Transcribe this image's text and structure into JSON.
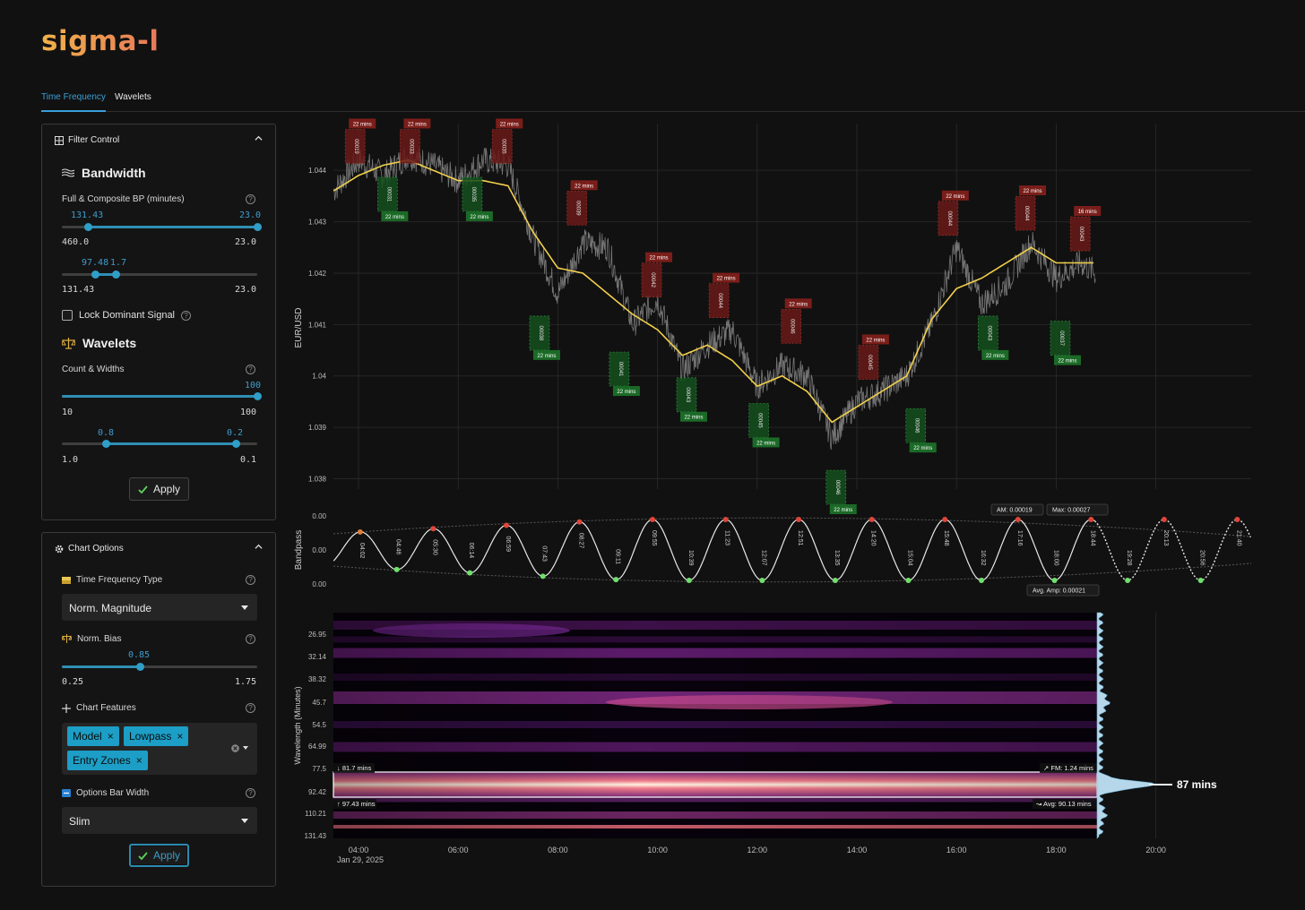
{
  "app": {
    "logo": "sigma-l"
  },
  "tabs": [
    {
      "label": "Time Frequency",
      "active": true
    },
    {
      "label": "Wavelets",
      "active": false
    }
  ],
  "filter_control": {
    "title": "Filter Control",
    "bandwidth": {
      "title": "Bandwidth",
      "label": "Full & Composite BP (minutes)",
      "slider1": {
        "low": "131.43",
        "high": "23.0",
        "min": "460.0",
        "max": "23.0",
        "low_pos": 0.135,
        "high_pos": 1.0
      },
      "slider2": {
        "low": "97.48",
        "high": "1.7",
        "min": "131.43",
        "max": "23.0",
        "low_pos": 0.17,
        "high_pos": 0.275
      }
    },
    "lock_label": "Lock Dominant Signal",
    "lock_checked": false,
    "wavelets": {
      "title": "Wavelets",
      "label": "Count & Widths",
      "count": {
        "value": "100",
        "min": "10",
        "max": "100",
        "pos": 1.0
      },
      "width": {
        "low": "0.8",
        "high": "0.2",
        "min": "1.0",
        "max": "0.1",
        "low_pos": 0.225,
        "high_pos": 0.89
      }
    },
    "apply_label": "Apply"
  },
  "chart_options": {
    "title": "Chart Options",
    "tf_type_label": "Time Frequency Type",
    "tf_type_value": "Norm. Magnitude",
    "norm_bias_label": "Norm. Bias",
    "norm_bias": {
      "value": "0.85",
      "min": "0.25",
      "max": "1.75",
      "pos": 0.4
    },
    "features_label": "Chart Features",
    "features": [
      "Model",
      "Lowpass",
      "Entry Zones"
    ],
    "bar_width_label": "Options Bar Width",
    "bar_width_value": "Slim",
    "apply_label": "Apply"
  },
  "colors": {
    "accent": "#1c9ec6",
    "price": "#8a8a8a",
    "lowpass": "#f2d04c",
    "peak": "#e0453a",
    "trough": "#6fe06a",
    "sell_zone": "#6a1a18",
    "buy_zone": "#15501e"
  },
  "price_chart": {
    "ylabel": "EUR/USD",
    "y_ticks": [
      "1.044",
      "1.043",
      "1.042",
      "1.041",
      "1.04",
      "1.039",
      "1.038"
    ],
    "zone_label": "22 mins",
    "last_zone_label": "16 mins",
    "sell_zones": [
      {
        "t": 3.95,
        "price": 1.0441,
        "label": "22 mins",
        "code": "00019"
      },
      {
        "t": 5.05,
        "price": 1.0441,
        "label": "22 mins",
        "code": "00033"
      },
      {
        "t": 6.9,
        "price": 1.0441,
        "label": "22 mins",
        "code": "00035"
      },
      {
        "t": 8.4,
        "price": 1.0429,
        "label": "22 mins",
        "code": "00039"
      },
      {
        "t": 9.9,
        "price": 1.0415,
        "label": "22 mins",
        "code": "00042"
      },
      {
        "t": 11.25,
        "price": 1.0411,
        "label": "22 mins",
        "code": "00044"
      },
      {
        "t": 12.7,
        "price": 1.0406,
        "label": "22 mins",
        "code": "00046"
      },
      {
        "t": 14.25,
        "price": 1.0399,
        "label": "22 mins",
        "code": "00045"
      },
      {
        "t": 15.85,
        "price": 1.0427,
        "label": "22 mins",
        "code": "00044"
      },
      {
        "t": 17.4,
        "price": 1.0428,
        "label": "22 mins",
        "code": "00044"
      },
      {
        "t": 18.5,
        "price": 1.0424,
        "label": "16 mins",
        "code": "00043"
      }
    ],
    "buy_zones": [
      {
        "t": 4.6,
        "price": 1.0439,
        "label": "22 mins",
        "code": "00031"
      },
      {
        "t": 6.3,
        "price": 1.0439,
        "label": "22 mins",
        "code": "00035"
      },
      {
        "t": 7.65,
        "price": 1.0412,
        "label": "22 mins",
        "code": "00038"
      },
      {
        "t": 9.25,
        "price": 1.0405,
        "label": "22 mins",
        "code": "00041"
      },
      {
        "t": 10.6,
        "price": 1.04,
        "label": "22 mins",
        "code": "00043"
      },
      {
        "t": 12.05,
        "price": 1.0395,
        "label": "22 mins",
        "code": "00045"
      },
      {
        "t": 13.6,
        "price": 1.0382,
        "label": "22 mins",
        "code": "00046"
      },
      {
        "t": 15.2,
        "price": 1.0394,
        "label": "22 mins",
        "code": "00046"
      },
      {
        "t": 16.65,
        "price": 1.0412,
        "label": "22 mins",
        "code": "00043"
      },
      {
        "t": 18.1,
        "price": 1.0411,
        "label": "22 mins",
        "code": "00037"
      }
    ]
  },
  "bandpass_chart": {
    "ylabel": "Bandpass",
    "y_ticks": [
      "0.00",
      "0.00",
      "0.00"
    ],
    "am_label": "AM: 0.00019",
    "max_label": "Max: 0.00027",
    "avg_amp_label": "Avg. Amp: 0.00021",
    "peak_times": [
      "04:02",
      "05:30",
      "06:59",
      "08:27",
      "09:55",
      "11:23",
      "12:51",
      "14:20",
      "15:48",
      "17:16",
      "18:44",
      "20:13",
      "21:40"
    ],
    "trough_times": [
      "04:46",
      "06:14",
      "07:43",
      "09:11",
      "10:39",
      "12:07",
      "13:35",
      "15:04",
      "16:32",
      "18:00",
      "19:28",
      "20:56"
    ]
  },
  "spectrogram": {
    "ylabel": "Wavelength (Minutes)",
    "y_ticks": [
      "26.95",
      "32.14",
      "38.32",
      "45.7",
      "54.5",
      "64.99",
      "77.5",
      "92.42",
      "110.21",
      "131.43"
    ],
    "low_label": "81.7 mins",
    "high_label": "97.43 mins",
    "fm_label": "FM: 1.24 mins",
    "avg_label": "Avg: 90.13 mins",
    "dominant_label": "87 mins"
  },
  "x_axis": {
    "ticks": [
      "04:00",
      "06:00",
      "08:00",
      "10:00",
      "12:00",
      "14:00",
      "16:00",
      "18:00",
      "20:00"
    ],
    "date": "Jan 29, 2025"
  },
  "chart_data": [
    {
      "type": "line",
      "title": "",
      "ylabel": "EUR/USD",
      "x_unit": "hour of day (Jan 29, 2025)",
      "ylim": [
        1.0378,
        1.0447
      ],
      "xlim": [
        3.5,
        21.8
      ],
      "series": [
        {
          "name": "",
          "x": [
            3.5,
            4.0,
            4.5,
            5.0,
            5.5,
            6.0,
            6.5,
            7.0,
            7.5,
            8.0,
            8.5,
            9.0,
            9.5,
            10.0,
            10.5,
            11.0,
            11.5,
            12.0,
            12.5,
            13.0,
            13.5,
            14.0,
            14.5,
            15.0,
            15.5,
            16.0,
            16.5,
            17.0,
            17.5,
            18.0,
            18.5,
            18.8
          ],
          "values": [
            1.0436,
            1.0442,
            1.0439,
            1.0443,
            1.0441,
            1.0438,
            1.0442,
            1.0441,
            1.0427,
            1.0416,
            1.0426,
            1.0425,
            1.041,
            1.0415,
            1.0401,
            1.0406,
            1.0409,
            1.0398,
            1.0402,
            1.04,
            1.0388,
            1.0395,
            1.0397,
            1.04,
            1.041,
            1.0425,
            1.0414,
            1.0418,
            1.0426,
            1.0419,
            1.0422,
            1.042
          ]
        },
        {
          "name": "",
          "x": [
            3.5,
            4.0,
            4.5,
            5.0,
            5.5,
            6.0,
            6.5,
            7.0,
            7.5,
            8.0,
            8.5,
            9.0,
            9.5,
            10.0,
            10.5,
            11.0,
            11.5,
            12.0,
            12.5,
            13.0,
            13.5,
            14.0,
            14.5,
            15.0,
            15.5,
            16.0,
            16.5,
            17.0,
            17.5,
            18.0,
            18.5,
            18.8
          ],
          "values": [
            1.0436,
            1.0439,
            1.0441,
            1.0442,
            1.044,
            1.0438,
            1.0438,
            1.0437,
            1.0428,
            1.0421,
            1.042,
            1.0416,
            1.0412,
            1.0409,
            1.0404,
            1.0406,
            1.0403,
            1.0398,
            1.04,
            1.0397,
            1.0391,
            1.0394,
            1.0397,
            1.04,
            1.0411,
            1.0417,
            1.0419,
            1.0422,
            1.0425,
            1.0422,
            1.0422,
            1.0422
          ]
        }
      ]
    },
    {
      "type": "line",
      "title": "",
      "ylabel": "Bandpass",
      "x_unit": "hour of day (Jan 29, 2025)",
      "series": [
        {
          "name": "",
          "period_minutes": 88,
          "first_peak": "04:02",
          "amplitude": 0.00021
        }
      ]
    },
    {
      "type": "heatmap",
      "title": "",
      "ylabel": "Wavelength (Minutes)",
      "y_ticks": [
        26.95,
        32.14,
        38.32,
        45.7,
        54.5,
        64.99,
        77.5,
        92.42,
        110.21,
        131.43
      ],
      "dominant_wavelength": 87,
      "band": [
        81.7,
        97.43
      ],
      "avg": 90.13
    }
  ]
}
